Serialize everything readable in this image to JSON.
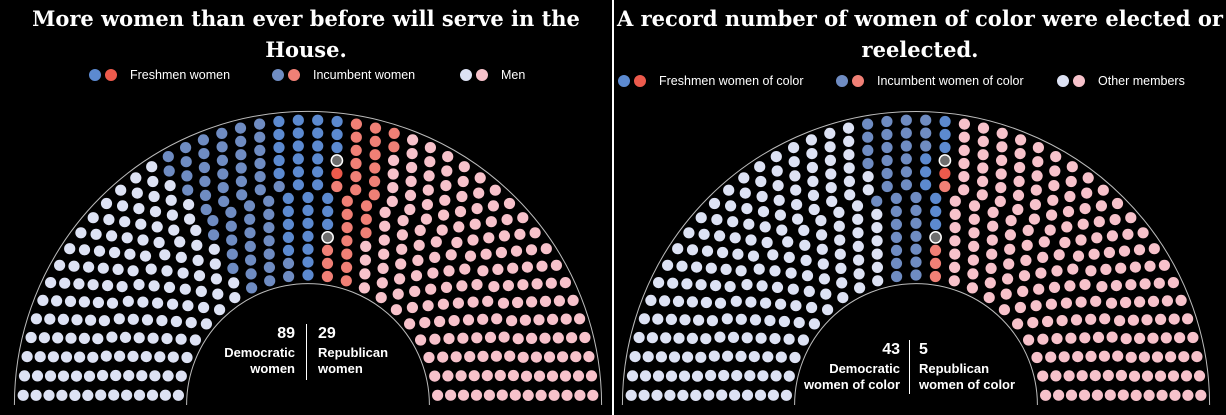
{
  "colors": {
    "fresh": "#5c8ad0",
    "fresh_r": "#ec5a4c",
    "incumbent": "#6f8cc2",
    "incumbent_r": "#f08076",
    "men_d": "#dde2f4",
    "men_r": "#f7c2cb",
    "vacant": "#6e6e6e"
  },
  "left": {
    "title_line1": "More women than ever before will serve in the",
    "title_line2": "House.",
    "legend": [
      {
        "label": "Freshmen women",
        "c1": "#5c8ad0",
        "c2": "#ec5a4c"
      },
      {
        "label": "Incumbent women",
        "c1": "#6f8cc2",
        "c2": "#f08076"
      },
      {
        "label": "Men",
        "c1": "#dde2f4",
        "c2": "#f7c2cb"
      }
    ],
    "dem_count": "89",
    "dem_label1": "Democratic",
    "dem_label2": "women",
    "rep_count": "29",
    "rep_label1": "Republican",
    "rep_label2": "women"
  },
  "right": {
    "title_line1": "A record number of women of color were elected or",
    "title_line2": "reelected.",
    "legend": [
      {
        "label": "Freshmen women of color",
        "c1": "#5c8ad0",
        "c2": "#ec5a4c"
      },
      {
        "label": "Incumbent women of color",
        "c1": "#6f8cc2",
        "c2": "#f08076"
      },
      {
        "label": "Other members",
        "c1": "#dde2f4",
        "c2": "#f7c2cb"
      }
    ],
    "dem_count": "43",
    "dem_label1": "Democratic",
    "dem_label2": "women of color",
    "rep_count": "5",
    "rep_label1": "Republican",
    "rep_label2": "women of color"
  },
  "chart_data": [
    {
      "type": "parliament",
      "title": "More women than ever before will serve in the House.",
      "total_seats": 435,
      "series": [
        {
          "name": "Democratic women",
          "value": 89
        },
        {
          "name": "Republican women",
          "value": 29
        }
      ],
      "categories": [
        "Freshmen women",
        "Incumbent women",
        "Men"
      ],
      "seats": {
        "democratic": 233,
        "republican": 200,
        "vacant": 2
      },
      "women": {
        "dem_freshmen": 35,
        "dem_incumbent": 54,
        "rep_freshmen": 1,
        "rep_incumbent": 28
      }
    },
    {
      "type": "parliament",
      "title": "A record number of women of color were elected or reelected.",
      "total_seats": 435,
      "series": [
        {
          "name": "Democratic women of color",
          "value": 43
        },
        {
          "name": "Republican women of color",
          "value": 5
        }
      ],
      "categories": [
        "Freshmen women of color",
        "Incumbent women of color",
        "Other members"
      ],
      "seats": {
        "democratic": 233,
        "republican": 200,
        "vacant": 2
      },
      "women_of_color": {
        "dem_freshmen": 9,
        "dem_incumbent": 34,
        "rep_freshmen": 1,
        "rep_incumbent": 4
      }
    }
  ]
}
